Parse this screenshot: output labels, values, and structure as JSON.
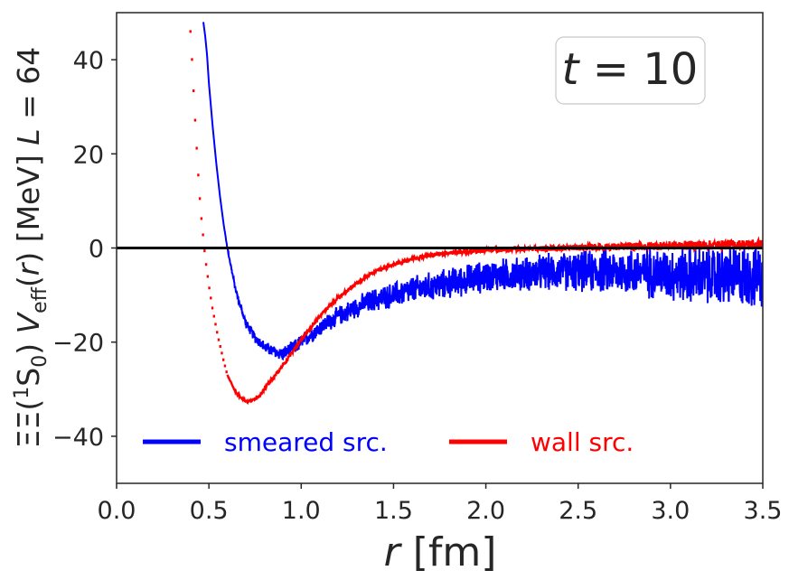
{
  "chart_data": {
    "type": "line",
    "title": "",
    "annotation": {
      "var": "t",
      "eq": " = ",
      "value": "10"
    },
    "xlabel": {
      "var": "r",
      "unit": " [fm]"
    },
    "ylabel": {
      "prefix": "ΞΞ(",
      "sup": "1",
      "state": "S",
      "sub": "0",
      "close": ") ",
      "v": "V",
      "vsub": "eff",
      "arg_open": "(",
      "arg": "r",
      "arg_close": ") [MeV] ",
      "lvar": "L",
      "leq": " = 64"
    },
    "xlim": [
      0.0,
      3.5
    ],
    "ylim": [
      -50,
      50
    ],
    "xticks": [
      0.0,
      0.5,
      1.0,
      1.5,
      2.0,
      2.5,
      3.0,
      3.5
    ],
    "xtick_labels": [
      "0.0",
      "0.5",
      "1.0",
      "1.5",
      "2.0",
      "2.5",
      "3.0",
      "3.5"
    ],
    "yticks": [
      -40,
      -20,
      0,
      20,
      40
    ],
    "ytick_labels": [
      "−40",
      "−20",
      "0",
      "20",
      "40"
    ],
    "hline_y": 0,
    "legend_position": "lower-left",
    "series": [
      {
        "name": "smeared src.",
        "color": "#0000ff",
        "x": [
          0.47,
          0.48,
          0.49,
          0.5,
          0.52,
          0.54,
          0.56,
          0.58,
          0.6,
          0.62,
          0.64,
          0.66,
          0.7,
          0.75,
          0.8,
          0.85,
          0.9,
          0.95,
          1.0,
          1.1,
          1.2,
          1.3,
          1.4,
          1.5,
          1.6,
          1.8,
          2.0,
          2.2,
          2.4,
          2.6,
          2.8,
          3.0,
          3.2,
          3.4,
          3.5
        ],
        "y": [
          48,
          45,
          41,
          35,
          26,
          18,
          11,
          5,
          0,
          -4,
          -8,
          -11,
          -16,
          -19,
          -21,
          -22,
          -22.5,
          -21.5,
          -20,
          -17,
          -14.5,
          -12.5,
          -11,
          -10,
          -9,
          -7.5,
          -6,
          -5.5,
          -5,
          -5,
          -5,
          -5.5,
          -6,
          -6,
          -6
        ],
        "noise": [
          0,
          0,
          0,
          0,
          0,
          0,
          0,
          0,
          0.3,
          0.4,
          0.5,
          0.6,
          0.8,
          1.0,
          1.1,
          1.2,
          1.3,
          1.4,
          1.5,
          1.6,
          1.8,
          2.0,
          2.2,
          2.4,
          2.6,
          2.8,
          3.0,
          3.2,
          3.5,
          4.0,
          4.5,
          5.0,
          5.5,
          6.0,
          6.0
        ]
      },
      {
        "name": "wall src.",
        "color": "#ff0000",
        "x": [
          0.4,
          0.41,
          0.42,
          0.43,
          0.44,
          0.45,
          0.46,
          0.47,
          0.48,
          0.49,
          0.5,
          0.52,
          0.55,
          0.58,
          0.6,
          0.65,
          0.7,
          0.73,
          0.77,
          0.8,
          0.9,
          1.0,
          1.1,
          1.2,
          1.3,
          1.4,
          1.5,
          1.6,
          1.7,
          1.8,
          2.0,
          2.2,
          2.4,
          2.6,
          2.8,
          3.0,
          3.2,
          3.5
        ],
        "y": [
          46,
          39,
          31,
          24,
          17,
          11,
          6,
          2,
          -2,
          -5,
          -8,
          -13,
          -19,
          -24,
          -27,
          -31,
          -32.5,
          -32.5,
          -31.5,
          -30,
          -25,
          -19.5,
          -14.5,
          -10.5,
          -7.5,
          -5,
          -3.5,
          -2.3,
          -1.5,
          -1,
          -0.5,
          -0.2,
          0,
          0.2,
          0.3,
          0.5,
          0.6,
          0.8
        ],
        "noise": [
          0,
          0,
          0,
          0,
          0,
          0,
          0,
          0,
          0,
          0,
          0,
          0,
          0,
          0,
          0.1,
          0.2,
          0.2,
          0.2,
          0.3,
          0.3,
          0.3,
          0.3,
          0.3,
          0.3,
          0.3,
          0.3,
          0.3,
          0.3,
          0.4,
          0.4,
          0.5,
          0.5,
          0.6,
          0.7,
          0.8,
          0.9,
          1.0,
          1.0
        ]
      }
    ]
  }
}
